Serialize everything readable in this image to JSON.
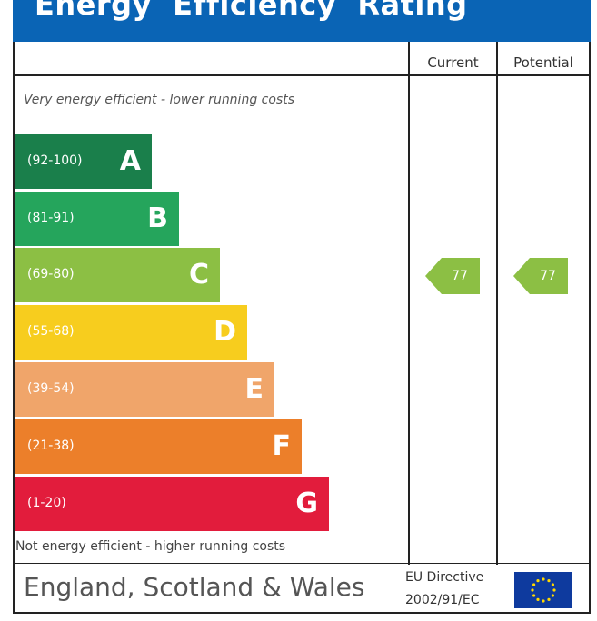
{
  "header": {
    "title": "Energy  Efficiency  Rating"
  },
  "columns": {
    "current": "Current",
    "potential": "Potential"
  },
  "notes": {
    "top": "Very energy efficient - lower running costs",
    "bottom": "Not energy efficient - higher running costs"
  },
  "bands": [
    {
      "range": "(92-100)",
      "letter": "A",
      "color": "#1a7f4b"
    },
    {
      "range": "(81-91)",
      "letter": "B",
      "color": "#25a55c"
    },
    {
      "range": "(69-80)",
      "letter": "C",
      "color": "#8cbf44"
    },
    {
      "range": "(55-68)",
      "letter": "D",
      "color": "#f7cd1e"
    },
    {
      "range": "(39-54)",
      "letter": "E",
      "color": "#f0a56a"
    },
    {
      "range": "(21-38)",
      "letter": "F",
      "color": "#ec7f2a"
    },
    {
      "range": "(1-20)",
      "letter": "G",
      "color": "#e21c3c"
    }
  ],
  "ratings": {
    "current": {
      "value": "77",
      "band": "C",
      "color": "#8cbf44"
    },
    "potential": {
      "value": "77",
      "band": "C",
      "color": "#8cbf44"
    }
  },
  "footer": {
    "region": "England, Scotland & Wales",
    "directive_line1": "EU Directive",
    "directive_line2": "2002/91/EC"
  }
}
